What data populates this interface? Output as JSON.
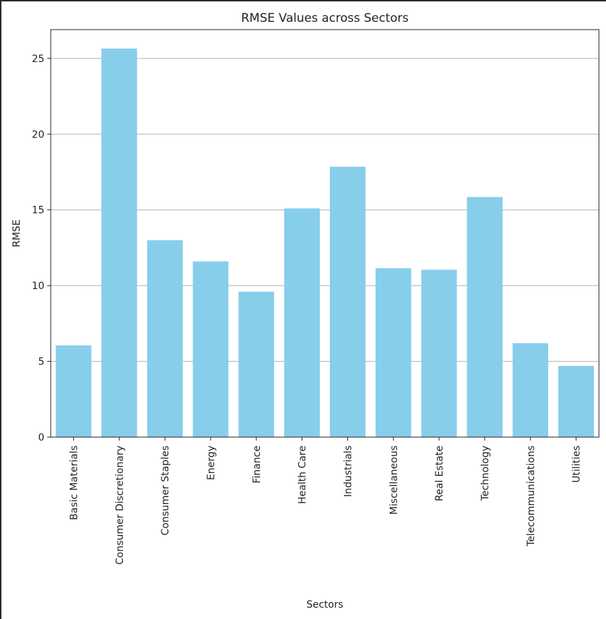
{
  "chart_data": {
    "type": "bar",
    "title": "RMSE Values across Sectors",
    "xlabel": "Sectors",
    "ylabel": "RMSE",
    "categories": [
      "Basic Materials",
      "Consumer Discretionary",
      "Consumer Staples",
      "Energy",
      "Finance",
      "Health Care",
      "Industrials",
      "Miscellaneous",
      "Real Estate",
      "Technology",
      "Telecommunications",
      "Utilities"
    ],
    "values": [
      6.05,
      25.65,
      13.0,
      11.6,
      9.6,
      15.1,
      17.85,
      11.15,
      11.05,
      15.85,
      6.2,
      4.7
    ],
    "yticks": [
      0,
      5,
      10,
      15,
      20,
      25
    ],
    "ylim": [
      0,
      26.9
    ],
    "grid": "y",
    "bar_color": "#87ceeb",
    "grid_color": "#b0b0b0"
  }
}
